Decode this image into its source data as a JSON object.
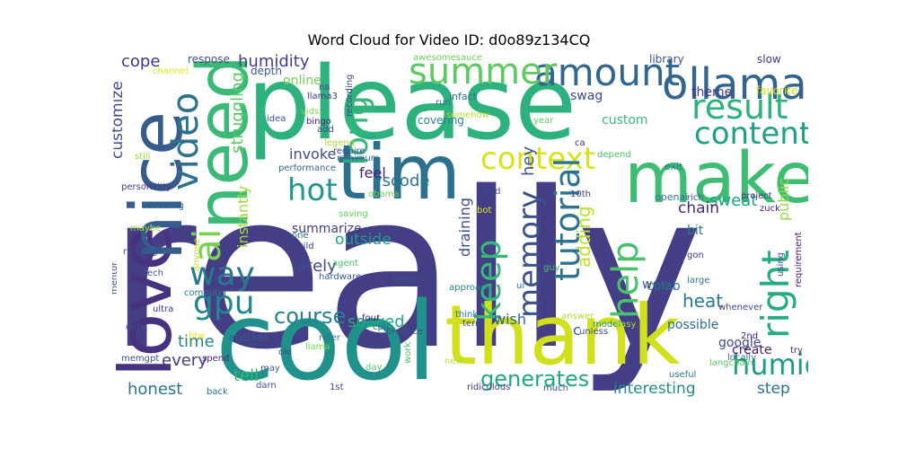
{
  "title": "Word Cloud for Video ID: d0o89z134CQ",
  "words": [
    {
      "text": "really",
      "color": "#433e85"
    },
    {
      "text": "please",
      "color": "#2db27d"
    },
    {
      "text": "cool",
      "color": "#21918c"
    },
    {
      "text": "thank",
      "color": "#d0e11c"
    },
    {
      "text": "make",
      "color": "#3fbc73"
    },
    {
      "text": "love",
      "color": "#46327e"
    },
    {
      "text": "nice",
      "color": "#365c8d"
    },
    {
      "text": "tim",
      "color": "#2d708e"
    },
    {
      "text": "need",
      "color": "#3aba76"
    },
    {
      "text": "ollama",
      "color": "#32648e"
    },
    {
      "text": "amount",
      "color": "#31678e"
    },
    {
      "text": "summer",
      "color": "#5ec962"
    },
    {
      "text": "result",
      "color": "#2db27d"
    },
    {
      "text": "content",
      "color": "#1fa187"
    },
    {
      "text": "context",
      "color": "#d8e219"
    },
    {
      "text": "video",
      "color": "#2c728e"
    },
    {
      "text": "ai",
      "color": "#7ad151"
    },
    {
      "text": "hot",
      "color": "#1f988b"
    },
    {
      "text": "long",
      "color": "#33b67a"
    },
    {
      "text": "gpu",
      "color": "#24878e"
    },
    {
      "text": "way",
      "color": "#2a788e"
    },
    {
      "text": "keep",
      "color": "#37b878"
    },
    {
      "text": "tutorial",
      "color": "#2c738e"
    },
    {
      "text": "memory",
      "color": "#3b528b"
    },
    {
      "text": "help",
      "color": "#4ac16d"
    },
    {
      "text": "right",
      "color": "#25ac82"
    },
    {
      "text": "humid",
      "color": "#1e9c89"
    },
    {
      "text": "course",
      "color": "#26818e"
    },
    {
      "text": "generates",
      "color": "#22a785"
    },
    {
      "text": "humidity",
      "color": "#424086"
    },
    {
      "text": "cope",
      "color": "#453882"
    },
    {
      "text": "customize",
      "color": "#3e4c8a"
    },
    {
      "text": "struggling",
      "color": "#5ac864"
    },
    {
      "text": "invoke",
      "color": "#3c4f8a"
    },
    {
      "text": "vscode",
      "color": "#2b758e"
    },
    {
      "text": "feel",
      "color": "#482173"
    },
    {
      "text": "sweat",
      "color": "#20a386"
    },
    {
      "text": "chain",
      "color": "#472c7a"
    },
    {
      "text": "hey",
      "color": "#3a548c"
    },
    {
      "text": "theme",
      "color": "#443983"
    },
    {
      "text": "swag",
      "color": "#3e4989"
    },
    {
      "text": "custom",
      "color": "#38b977"
    },
    {
      "text": "instantly",
      "color": "#a0da39"
    },
    {
      "text": "summarize",
      "color": "#424086"
    },
    {
      "text": "bit",
      "color": "#2a788e"
    },
    {
      "text": "public",
      "color": "#93d741"
    },
    {
      "text": "outside",
      "color": "#1f9e89"
    },
    {
      "text": "lately",
      "color": "#3e4c8a"
    },
    {
      "text": "wow",
      "color": "#3b528b"
    },
    {
      "text": "heat",
      "color": "#297b8e"
    },
    {
      "text": "adding",
      "color": "#bddf26"
    },
    {
      "text": "draining",
      "color": "#3d4e8a"
    },
    {
      "text": "soaked",
      "color": "#22a884"
    },
    {
      "text": "wish",
      "color": "#33638d"
    },
    {
      "text": "possible",
      "color": "#2f6c8e"
    },
    {
      "text": "time",
      "color": "#26828e"
    },
    {
      "text": "every",
      "color": "#443a83"
    },
    {
      "text": "tell",
      "color": "#35b779"
    },
    {
      "text": "honest",
      "color": "#2a768e"
    },
    {
      "text": "interesting",
      "color": "#23898e"
    },
    {
      "text": "step",
      "color": "#2c728e"
    },
    {
      "text": "google",
      "color": "#3e4989"
    },
    {
      "text": "create",
      "color": "#481b6d"
    },
    {
      "text": "colab",
      "color": "#2e6d8e"
    },
    {
      "text": "online",
      "color": "#70cf57"
    },
    {
      "text": "depth",
      "color": "#38598c"
    },
    {
      "text": "respose",
      "color": "#3d4e8a"
    },
    {
      "text": "channel",
      "color": "#e5e419"
    },
    {
      "text": "awesomesauce",
      "color": "#6ccd5a"
    },
    {
      "text": "library",
      "color": "#3b528b"
    },
    {
      "text": "slow",
      "color": "#46337e"
    },
    {
      "text": "favorite",
      "color": "#d2e21b"
    },
    {
      "text": "na",
      "color": "#3f4788"
    },
    {
      "text": "llama3",
      "color": "#453781"
    },
    {
      "text": "vids",
      "color": "#84d44b"
    },
    {
      "text": "idea",
      "color": "#3b528b"
    },
    {
      "text": "bingo",
      "color": "#482475"
    },
    {
      "text": "add",
      "color": "#3f4788"
    },
    {
      "text": "infact",
      "color": "#2e6e8e"
    },
    {
      "text": "covering",
      "color": "#287c8e"
    },
    {
      "text": "run",
      "color": "#2c728e"
    },
    {
      "text": "year",
      "color": "#5cc863"
    },
    {
      "text": "recording",
      "color": "#414487"
    },
    {
      "text": "somehow",
      "color": "#bade28"
    },
    {
      "text": "legend",
      "color": "#a8db34"
    },
    {
      "text": "require",
      "color": "#3e4c8a"
    },
    {
      "text": "minimum",
      "color": "#2c728e"
    },
    {
      "text": "ca",
      "color": "#482878"
    },
    {
      "text": "depend",
      "color": "#4ec36b"
    },
    {
      "text": "exit",
      "color": "#2a768e"
    },
    {
      "text": "still",
      "color": "#9bd93c"
    },
    {
      "text": "performance",
      "color": "#31688e"
    },
    {
      "text": "obama",
      "color": "#6ece58"
    },
    {
      "text": "personality",
      "color": "#453882"
    },
    {
      "text": "read",
      "color": "#3e4a89"
    },
    {
      "text": "10th",
      "color": "#414487"
    },
    {
      "text": "openai",
      "color": "#2a788e"
    },
    {
      "text": "rich",
      "color": "#355f8d"
    },
    {
      "text": "project",
      "color": "#46307e"
    },
    {
      "text": "zuck",
      "color": "#482475"
    },
    {
      "text": "bot",
      "color": "#e2e418"
    },
    {
      "text": "maybe",
      "color": "#a5db36"
    },
    {
      "text": "following",
      "color": "#2e6f8e"
    },
    {
      "text": "saving",
      "color": "#60ca60"
    },
    {
      "text": "running",
      "color": "#3e4a89"
    },
    {
      "text": "one",
      "color": "#2d718e"
    },
    {
      "text": "build",
      "color": "#424086"
    },
    {
      "text": "agent",
      "color": "#4ac16d"
    },
    {
      "text": "gon",
      "color": "#424086"
    },
    {
      "text": "tech",
      "color": "#3a548c"
    },
    {
      "text": "anyone",
      "color": "#c8e020"
    },
    {
      "text": "guy",
      "color": "#4ac16d"
    },
    {
      "text": "using",
      "color": "#3e4989"
    },
    {
      "text": "large",
      "color": "#2a788e"
    },
    {
      "text": "hardware",
      "color": "#39568c"
    },
    {
      "text": "speed",
      "color": "#3b528b"
    },
    {
      "text": "approach",
      "color": "#24868e"
    },
    {
      "text": "ui",
      "color": "#2b758e"
    },
    {
      "text": "requirement",
      "color": "#481c6e"
    },
    {
      "text": "mentor",
      "color": "#3b528b"
    },
    {
      "text": "computer",
      "color": "#2b748e"
    },
    {
      "text": "ultra",
      "color": "#472f7d"
    },
    {
      "text": "btw",
      "color": "#e7e419"
    },
    {
      "text": "four",
      "color": "#482173"
    },
    {
      "text": "cpu",
      "color": "#31688e"
    },
    {
      "text": "term",
      "color": "#3d4e8a"
    },
    {
      "text": "think",
      "color": "#2e6e8e"
    },
    {
      "text": "answer",
      "color": "#b2dd2d"
    },
    {
      "text": "unless",
      "color": "#3e4c8a"
    },
    {
      "text": "whenever",
      "color": "#3e4989"
    },
    {
      "text": "2nd",
      "color": "#481b6d"
    },
    {
      "text": "data",
      "color": "#3e4c8a"
    },
    {
      "text": "matched",
      "color": "#35608d"
    },
    {
      "text": "refer",
      "color": "#2b758e"
    },
    {
      "text": "produce",
      "color": "#3c4f8a"
    },
    {
      "text": "model",
      "color": "#228b8d"
    },
    {
      "text": "easy",
      "color": "#a8db34"
    },
    {
      "text": "c",
      "color": "#365c8d"
    },
    {
      "text": "old",
      "color": "#3f4889"
    },
    {
      "text": "llama",
      "color": "#7ad151"
    },
    {
      "text": "locally",
      "color": "#2e6e8e"
    },
    {
      "text": "langchain",
      "color": "#5ec962"
    },
    {
      "text": "try",
      "color": "#482878"
    },
    {
      "text": "memgpt",
      "color": "#3b528b"
    },
    {
      "text": "spend",
      "color": "#482677"
    },
    {
      "text": "may",
      "color": "#39568c"
    },
    {
      "text": "day",
      "color": "#54c568"
    },
    {
      "text": "work",
      "color": "#4ac16d"
    },
    {
      "text": "new",
      "color": "#addc30"
    },
    {
      "text": "useful",
      "color": "#2b758e"
    },
    {
      "text": "back",
      "color": "#2e6f8e"
    },
    {
      "text": "darn",
      "color": "#3e4c8a"
    },
    {
      "text": "1st",
      "color": "#3e4989"
    },
    {
      "text": "ridiculous",
      "color": "#453882"
    },
    {
      "text": "much",
      "color": "#3e4c8a"
    }
  ]
}
